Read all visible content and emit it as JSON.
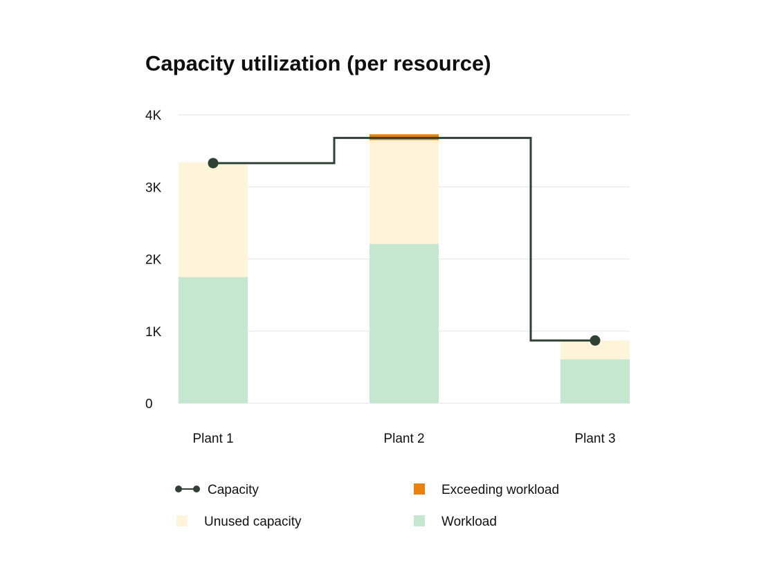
{
  "chart_data": {
    "type": "bar",
    "stacked": true,
    "title": "Capacity utilization (per resource)",
    "xlabel": "",
    "ylabel": "",
    "categories": [
      "Plant 1",
      "Plant 2",
      "Plant 3"
    ],
    "ylim": [
      0,
      4000
    ],
    "y_ticks": [
      0,
      1000,
      2000,
      3000,
      4000
    ],
    "y_tick_labels": [
      "0",
      "1K",
      "2K",
      "3K",
      "4K"
    ],
    "grid": true,
    "series": [
      {
        "name": "Workload",
        "color": "#c5e6cf",
        "values": [
          1750,
          2210,
          610
        ]
      },
      {
        "name": "Unused capacity",
        "color": "#fff3d9",
        "values": [
          1590,
          1440,
          260
        ]
      },
      {
        "name": "Exceeding workload",
        "color": "#e8820e",
        "values": [
          0,
          80,
          0
        ]
      }
    ],
    "line_series": {
      "name": "Capacity",
      "type": "step",
      "color": "#2f4034",
      "values": [
        3330,
        3680,
        870
      ]
    },
    "legend": {
      "placement": "bottom",
      "items": [
        {
          "label": "Capacity",
          "marker": "line-dot",
          "color": "#2f4034"
        },
        {
          "label": "Exceeding workload",
          "marker": "square",
          "color": "#e8820e"
        },
        {
          "label": "Unused capacity",
          "marker": "square",
          "color": "#fff3d9"
        },
        {
          "label": "Workload",
          "marker": "square",
          "color": "#c5e6cf"
        }
      ]
    }
  }
}
